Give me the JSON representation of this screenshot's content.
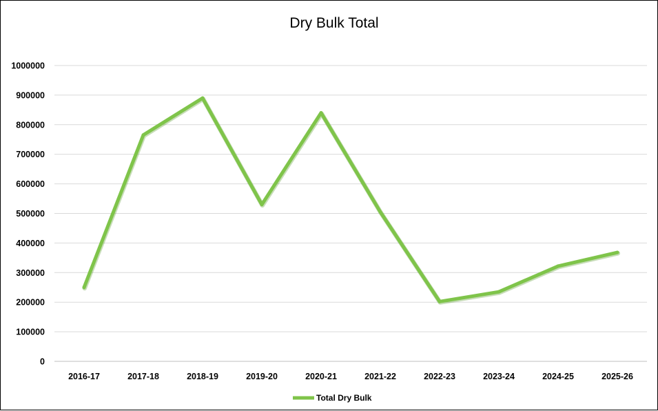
{
  "chart_data": {
    "type": "line",
    "title": "Dry Bulk Total",
    "xlabel": "",
    "ylabel": "",
    "categories": [
      "2016-17",
      "2017-18",
      "2018-19",
      "2019-20",
      "2020-21",
      "2021-22",
      "2022-23",
      "2023-24",
      "2024-25",
      "2025-26"
    ],
    "series": [
      {
        "name": "Total Dry Bulk",
        "color": "#7fc44a",
        "values": [
          250000,
          765000,
          890000,
          530000,
          840000,
          505000,
          202000,
          235000,
          322000,
          368000
        ]
      }
    ],
    "ylim": [
      0,
      1000000
    ],
    "yticks": [
      "0",
      "100000",
      "200000",
      "300000",
      "400000",
      "500000",
      "600000",
      "700000",
      "800000",
      "900000",
      "1000000"
    ],
    "grid": true,
    "legend_position": "bottom"
  }
}
